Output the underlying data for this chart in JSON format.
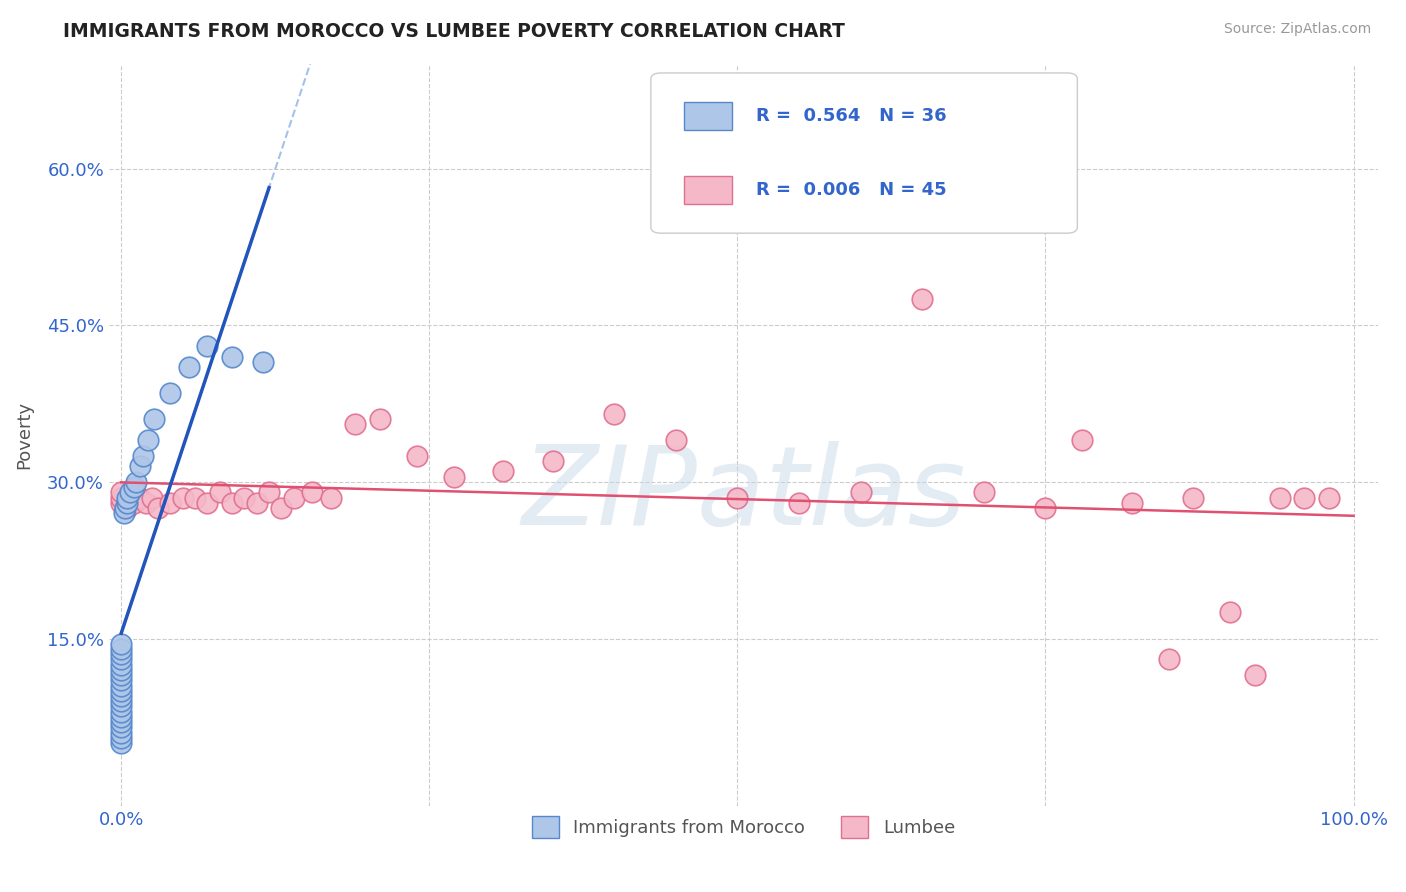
{
  "title": "IMMIGRANTS FROM MOROCCO VS LUMBEE POVERTY CORRELATION CHART",
  "source_text": "Source: ZipAtlas.com",
  "ylabel": "Poverty",
  "xlim": [
    -0.01,
    1.02
  ],
  "ylim": [
    -0.01,
    0.7
  ],
  "xticks": [
    0.0,
    1.0
  ],
  "xticklabels": [
    "0.0%",
    "100.0%"
  ],
  "yticks": [
    0.15,
    0.3,
    0.45,
    0.6
  ],
  "yticklabels": [
    "15.0%",
    "30.0%",
    "45.0%",
    "60.0%"
  ],
  "watermark_text": "ZIPatlas",
  "legend_r1": "R =  0.564",
  "legend_n1": "N = 36",
  "legend_r2": "R =  0.006",
  "legend_n2": "N = 45",
  "legend_label1": "Immigrants from Morocco",
  "legend_label2": "Lumbee",
  "morocco_color": "#aec6e8",
  "lumbee_color": "#f5b8c8",
  "morocco_edge": "#5588cc",
  "lumbee_edge": "#e07090",
  "trendline_morocco_color": "#2255bb",
  "trendline_lumbee_color": "#e05070",
  "trendline_dashed_color": "#6699dd",
  "grid_color": "#cccccc",
  "background_color": "#ffffff",
  "title_color": "#222222",
  "axis_tick_color": "#3366cc",
  "ylabel_color": "#555555",
  "source_color": "#999999",
  "morocco_x": [
    0.0,
    0.0,
    0.0,
    0.0,
    0.0,
    0.0,
    0.0,
    0.0,
    0.0,
    0.0,
    0.0,
    0.0,
    0.0,
    0.0,
    0.0,
    0.0,
    0.0,
    0.0,
    0.0,
    0.0,
    0.002,
    0.003,
    0.005,
    0.005,
    0.007,
    0.01,
    0.012,
    0.015,
    0.018,
    0.022,
    0.027,
    0.04,
    0.055,
    0.07,
    0.09,
    0.115
  ],
  "morocco_y": [
    0.05,
    0.055,
    0.06,
    0.065,
    0.07,
    0.075,
    0.08,
    0.085,
    0.09,
    0.095,
    0.1,
    0.105,
    0.11,
    0.115,
    0.12,
    0.125,
    0.13,
    0.135,
    0.14,
    0.145,
    0.27,
    0.275,
    0.28,
    0.285,
    0.29,
    0.295,
    0.3,
    0.315,
    0.325,
    0.34,
    0.36,
    0.385,
    0.41,
    0.43,
    0.42,
    0.415
  ],
  "lumbee_x": [
    0.0,
    0.0,
    0.0,
    0.005,
    0.01,
    0.015,
    0.02,
    0.025,
    0.03,
    0.04,
    0.05,
    0.06,
    0.07,
    0.08,
    0.09,
    0.1,
    0.11,
    0.12,
    0.13,
    0.14,
    0.155,
    0.17,
    0.19,
    0.21,
    0.24,
    0.27,
    0.31,
    0.35,
    0.4,
    0.45,
    0.5,
    0.55,
    0.6,
    0.65,
    0.7,
    0.75,
    0.78,
    0.82,
    0.85,
    0.87,
    0.9,
    0.92,
    0.94,
    0.96,
    0.98
  ],
  "lumbee_y": [
    0.28,
    0.285,
    0.29,
    0.275,
    0.28,
    0.285,
    0.28,
    0.285,
    0.275,
    0.28,
    0.285,
    0.285,
    0.28,
    0.29,
    0.28,
    0.285,
    0.28,
    0.29,
    0.275,
    0.285,
    0.29,
    0.285,
    0.355,
    0.36,
    0.325,
    0.305,
    0.31,
    0.32,
    0.365,
    0.34,
    0.285,
    0.28,
    0.29,
    0.475,
    0.29,
    0.275,
    0.34,
    0.28,
    0.13,
    0.285,
    0.175,
    0.115,
    0.285,
    0.285,
    0.285
  ]
}
